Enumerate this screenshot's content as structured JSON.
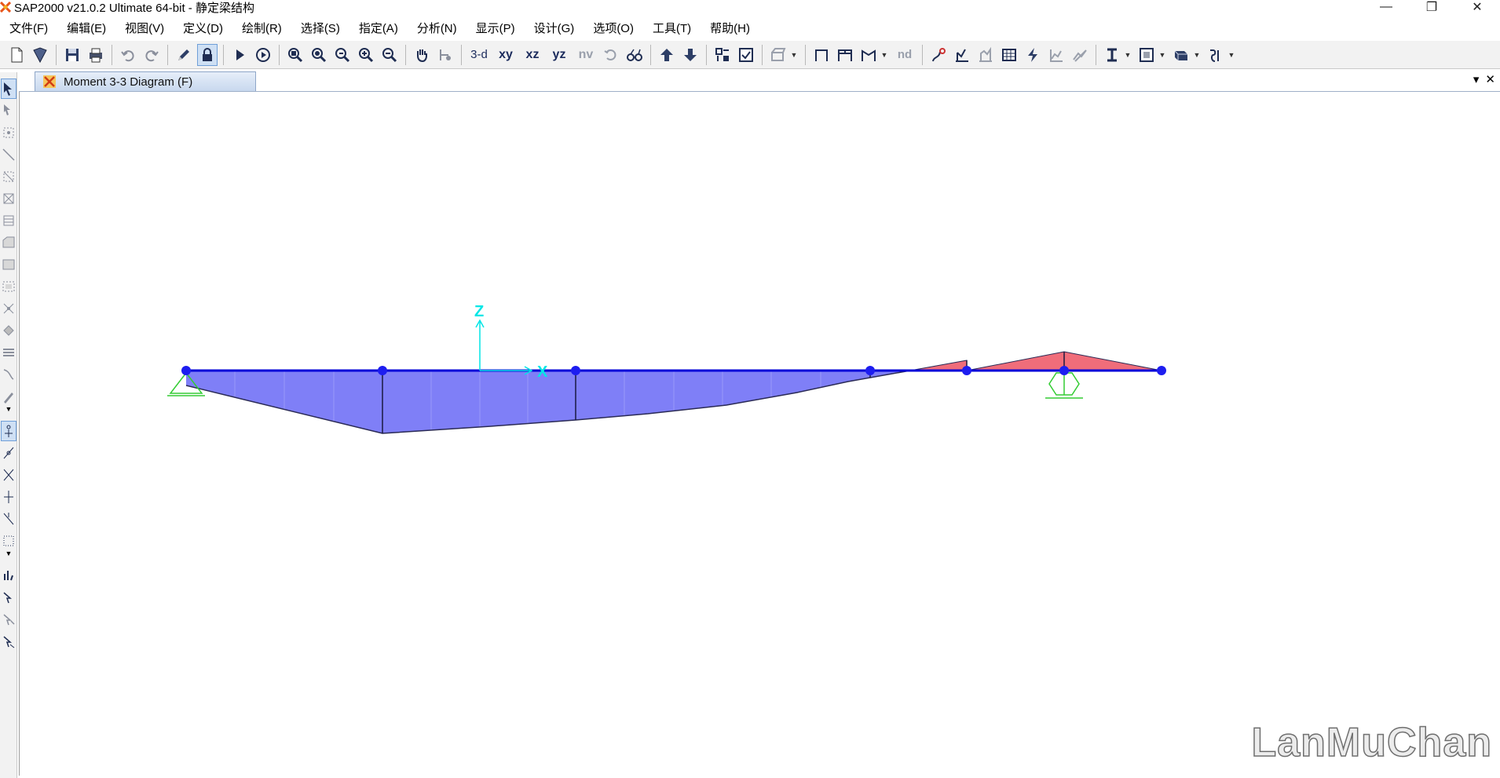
{
  "window": {
    "title": "SAP2000 v21.0.2 Ultimate 64-bit - 静定梁结构",
    "controls": {
      "minimize": "—",
      "restore": "❐",
      "close": "✕"
    }
  },
  "menu": {
    "items": [
      "文件(F)",
      "编辑(E)",
      "视图(V)",
      "定义(D)",
      "绘制(R)",
      "选择(S)",
      "指定(A)",
      "分析(N)",
      "显示(P)",
      "设计(G)",
      "选项(O)",
      "工具(T)",
      "帮助(H)"
    ]
  },
  "toolbar": {
    "view_3d": "3-d",
    "view_xy": "xy",
    "view_xz": "xz",
    "view_yz": "yz",
    "view_nv": "nv",
    "nd": "nd"
  },
  "tab": {
    "title": "Moment 3-3 Diagram (F)",
    "dropdown": "▾",
    "close": "✕"
  },
  "diagram": {
    "axis_z_label": "Z",
    "axis_x_label": "X",
    "colors": {
      "positive_fill": "#7f7ff7",
      "negative_fill": "#f06d7a",
      "beam": "#0000d8",
      "joint": "#1d1df0",
      "support": "#33cc33",
      "axis": "#00e6e6",
      "outline": "#2a2a55"
    }
  },
  "watermark": "LanMuChan"
}
